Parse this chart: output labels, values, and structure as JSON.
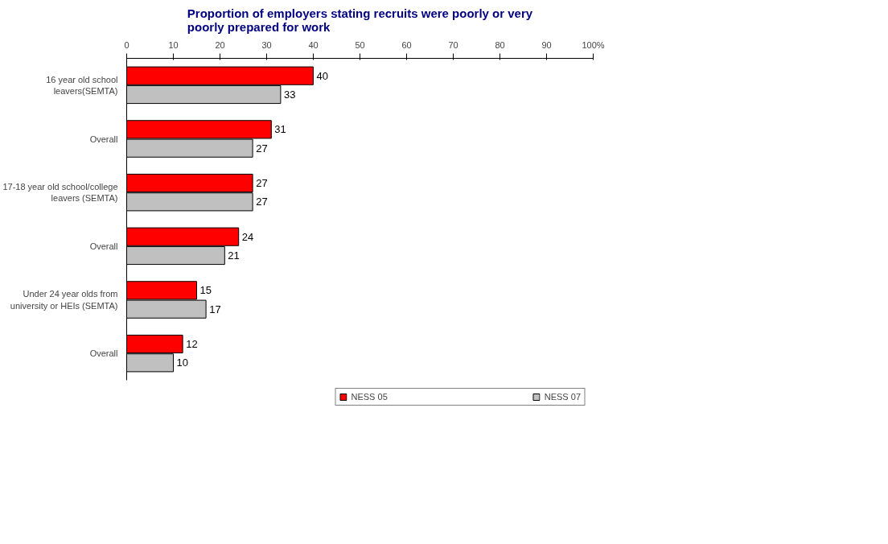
{
  "chart_data": {
    "type": "bar",
    "orientation": "horizontal",
    "title": "Proportion of employers stating recruits were poorly or very poorly prepared for work",
    "categories": [
      "16 year old school leavers(SEMTA)",
      "Overall",
      "17-18 year old school/college leavers (SEMTA)",
      "Overall",
      "Under 24 year olds from university or HEIs (SEMTA)",
      "Overall"
    ],
    "series": [
      {
        "name": "NESS 05",
        "color": "#ff0000",
        "values": [
          40,
          31,
          27,
          24,
          15,
          12
        ]
      },
      {
        "name": "NESS 07",
        "color": "#c0c0c0",
        "values": [
          33,
          27,
          27,
          21,
          17,
          10
        ]
      }
    ],
    "xlim": [
      0,
      100
    ],
    "xticks": [
      0,
      10,
      20,
      30,
      40,
      50,
      60,
      70,
      80,
      90,
      {
        "value": 100,
        "label": "100%"
      }
    ],
    "data_labels": true,
    "grid": false,
    "legend": "bottom"
  }
}
